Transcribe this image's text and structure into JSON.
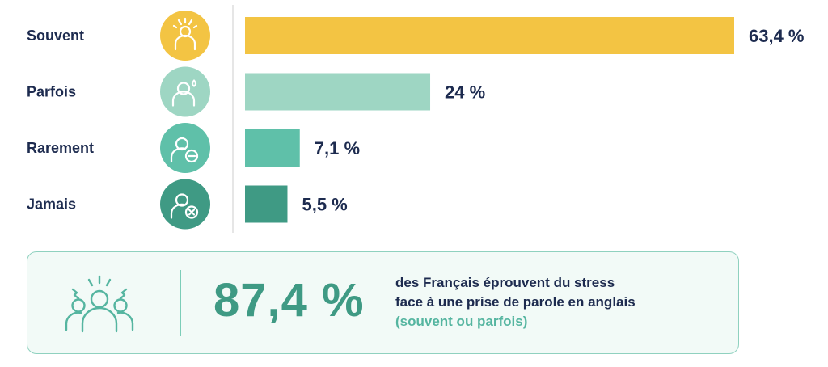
{
  "chart_data": {
    "type": "bar",
    "orientation": "horizontal",
    "categories": [
      "Souvent",
      "Parfois",
      "Rarement",
      "Jamais"
    ],
    "values": [
      63.4,
      24,
      7.1,
      5.5
    ],
    "value_labels": [
      "63,4 %",
      "24 %",
      "7,1 %",
      "5,5 %"
    ],
    "colors": [
      "#f3c443",
      "#9ed6c3",
      "#5fc0a9",
      "#3f9a84"
    ],
    "icons": [
      "stressed-person-icon",
      "sweating-person-icon",
      "person-minus-icon",
      "person-cross-icon"
    ],
    "xlim": [
      0,
      63.4
    ],
    "grid": false,
    "legend": "none"
  },
  "summary": {
    "value": "87,4 %",
    "line1": "des Français éprouvent du stress",
    "line2": "face à une prise de parole en anglais",
    "note": "(souvent ou parfois)",
    "icon": "stressed-group-icon"
  }
}
